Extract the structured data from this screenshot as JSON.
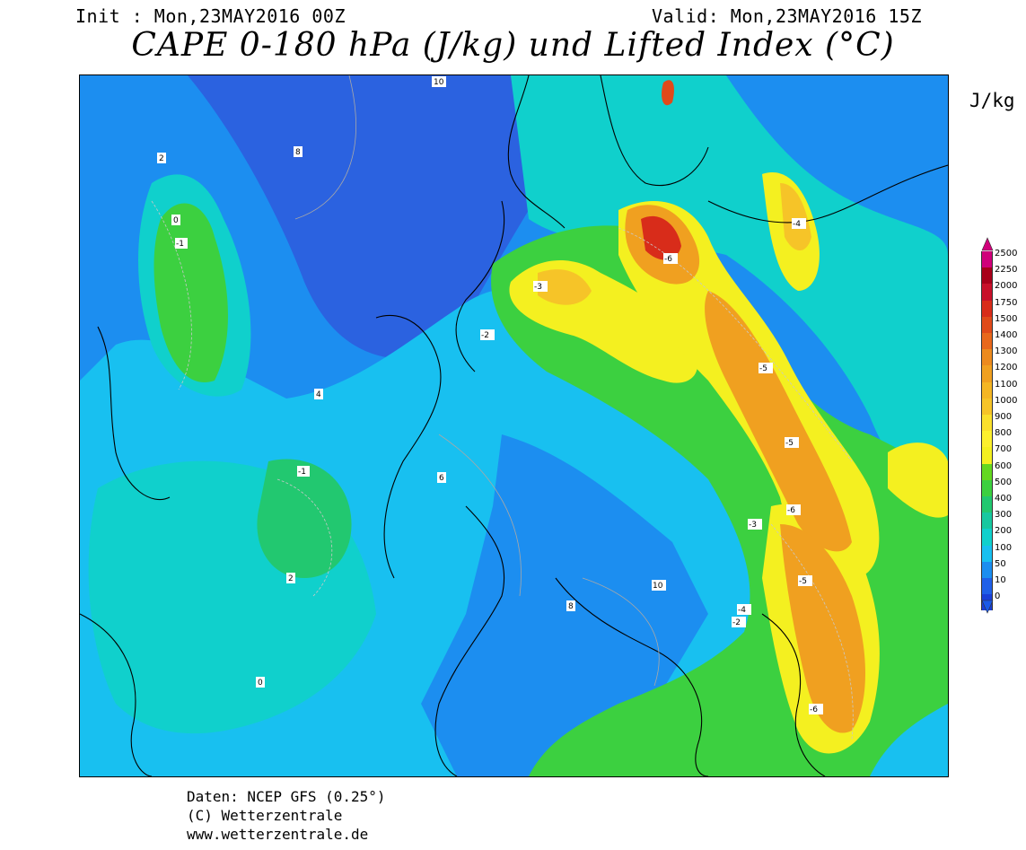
{
  "header": {
    "init": "Init : Mon,23MAY2016 00Z",
    "valid": "Valid: Mon,23MAY2016 15Z",
    "title": "CAPE 0-180 hPa (J/kg) und Lifted Index (°C)"
  },
  "legend": {
    "unit": "J/kg",
    "levels": [
      "2500",
      "2250",
      "2000",
      "1750",
      "1500",
      "1400",
      "1300",
      "1200",
      "1100",
      "1000",
      "900",
      "800",
      "700",
      "600",
      "500",
      "400",
      "300",
      "200",
      "100",
      "50",
      "10",
      "0"
    ],
    "colors": [
      "#d0007a",
      "#a8001a",
      "#c8102a",
      "#d82c1a",
      "#e04a1a",
      "#e8681c",
      "#ec8a1e",
      "#f0a020",
      "#f4b624",
      "#f6c428",
      "#fae02c",
      "#fcf02e",
      "#f4f020",
      "#64d820",
      "#3cd040",
      "#22c870",
      "#18c8a0",
      "#10d0cc",
      "#18c0f0",
      "#1c8ef0",
      "#2060e8",
      "#1a40d8"
    ]
  },
  "credits": {
    "line1": "Daten: NCEP GFS (0.25°)",
    "line2": "(C) Wetterzentrale",
    "line3": "www.wetterzentrale.de"
  },
  "map_labels": [
    "10",
    "8",
    "2",
    "0",
    "-1",
    "4",
    "6",
    "-2",
    "-3",
    "-4",
    "-5",
    "-6"
  ]
}
